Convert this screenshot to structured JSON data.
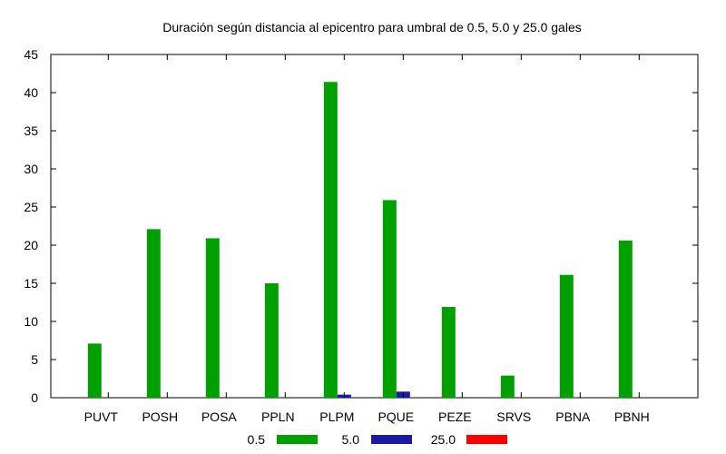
{
  "chart_data": {
    "type": "bar",
    "title": "Duración según distancia al epicentro para umbral de 0.5, 5.0 y 25.0 gales",
    "xlabel": "",
    "ylabel": "",
    "ylim": [
      0,
      45
    ],
    "yticks": [
      0,
      5,
      10,
      15,
      20,
      25,
      30,
      35,
      40,
      45
    ],
    "grid": false,
    "legend_position": "bottom",
    "categories": [
      "PUVT",
      "POSH",
      "POSA",
      "PPLN",
      "PLPM",
      "PQUE",
      "PEZE",
      "SRVS",
      "PBNA",
      "PBNH"
    ],
    "series": [
      {
        "name": "0.5",
        "color": "#00a000",
        "values": [
          7.1,
          22.1,
          20.9,
          15.0,
          41.4,
          25.9,
          11.9,
          2.9,
          16.1,
          20.6
        ]
      },
      {
        "name": "5.0",
        "color": "#1a1aa8",
        "values": [
          0,
          0,
          0,
          0,
          0.4,
          0.8,
          0,
          0,
          0,
          0
        ]
      },
      {
        "name": "25.0",
        "color": "#ff0000",
        "values": [
          0,
          0,
          0,
          0,
          0,
          0,
          0,
          0,
          0,
          0
        ]
      }
    ]
  }
}
